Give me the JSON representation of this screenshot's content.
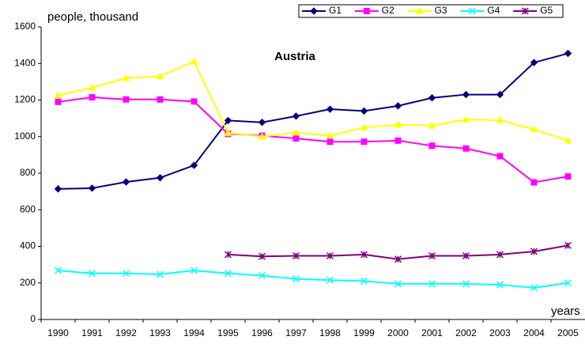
{
  "chart_data": {
    "type": "line",
    "title": "Austria",
    "y_label": "people, thousand",
    "x_label": "years",
    "categories": [
      "1990",
      "1991",
      "1992",
      "1993",
      "1994",
      "1995",
      "1996",
      "1997",
      "1998",
      "1999",
      "2000",
      "2001",
      "2002",
      "2003",
      "2004",
      "2005"
    ],
    "series": [
      {
        "name": "G1",
        "color": "#000080",
        "marker": "diamond",
        "values": [
          714,
          718,
          752,
          775,
          843,
          1088,
          1078,
          1112,
          1150,
          1140,
          1168,
          1212,
          1230,
          1230,
          1405,
          1455
        ]
      },
      {
        "name": "G2",
        "color": "#ff00ff",
        "marker": "square",
        "values": [
          1190,
          1215,
          1203,
          1203,
          1192,
          1015,
          1005,
          990,
          972,
          972,
          978,
          950,
          935,
          893,
          750,
          782
        ]
      },
      {
        "name": "G3",
        "color": "#ffff00",
        "marker": "triangle",
        "values": [
          1225,
          1268,
          1320,
          1330,
          1410,
          1020,
          1000,
          1022,
          1005,
          1050,
          1065,
          1060,
          1093,
          1090,
          1040,
          978
        ]
      },
      {
        "name": "G4",
        "color": "#00ffff",
        "marker": "x",
        "values": [
          268,
          252,
          252,
          247,
          268,
          252,
          240,
          222,
          215,
          210,
          195,
          195,
          195,
          190,
          173,
          200
        ]
      },
      {
        "name": "G5",
        "color": "#800080",
        "marker": "star",
        "values": [
          null,
          null,
          null,
          null,
          null,
          355,
          345,
          348,
          348,
          355,
          330,
          348,
          348,
          355,
          372,
          405
        ]
      }
    ],
    "ylim": [
      0,
      1600
    ],
    "yticks": [
      0,
      200,
      400,
      600,
      800,
      1000,
      1200,
      1400,
      1600
    ],
    "legend": "top-right",
    "grid": false
  }
}
